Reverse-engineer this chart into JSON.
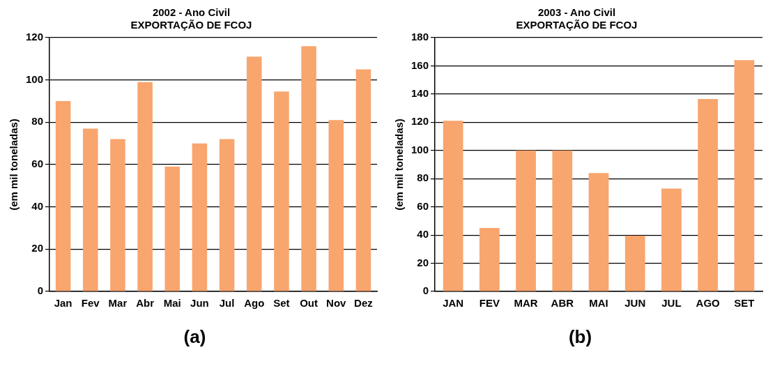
{
  "chart_data": [
    {
      "type": "bar",
      "title": "2002 - Ano Civil\nEXPORTAÇÃO DE FCOJ",
      "ylabel": "(em mil toneladas)",
      "categories": [
        "Jan",
        "Fev",
        "Mar",
        "Abr",
        "Mai",
        "Jun",
        "Jul",
        "Ago",
        "Set",
        "Out",
        "Nov",
        "Dez"
      ],
      "values": [
        90,
        77,
        72,
        99,
        59,
        70,
        72,
        111,
        94.5,
        116,
        81,
        105
      ],
      "color": "#f8a56e",
      "ylim": [
        0,
        120
      ],
      "yticks": [
        0,
        20,
        40,
        60,
        80,
        100,
        120
      ],
      "grid": "y",
      "legend": false,
      "annotations": [
        "(a)"
      ]
    },
    {
      "type": "bar",
      "title": "2003 - Ano Civil\nEXPORTAÇÃO DE FCOJ",
      "ylabel": "(em mil toneladas)",
      "categories": [
        "JAN",
        "FEV",
        "MAR",
        "ABR",
        "MAI",
        "JUN",
        "JUL",
        "AGO",
        "SET"
      ],
      "values": [
        121,
        45,
        100,
        100,
        84,
        39.5,
        73,
        136.5,
        164
      ],
      "color": "#f8a56e",
      "ylim": [
        0,
        180
      ],
      "yticks": [
        0,
        20,
        40,
        60,
        80,
        100,
        120,
        140,
        160,
        180
      ],
      "grid": "y",
      "legend": false,
      "annotations": [
        "(b)"
      ]
    }
  ]
}
